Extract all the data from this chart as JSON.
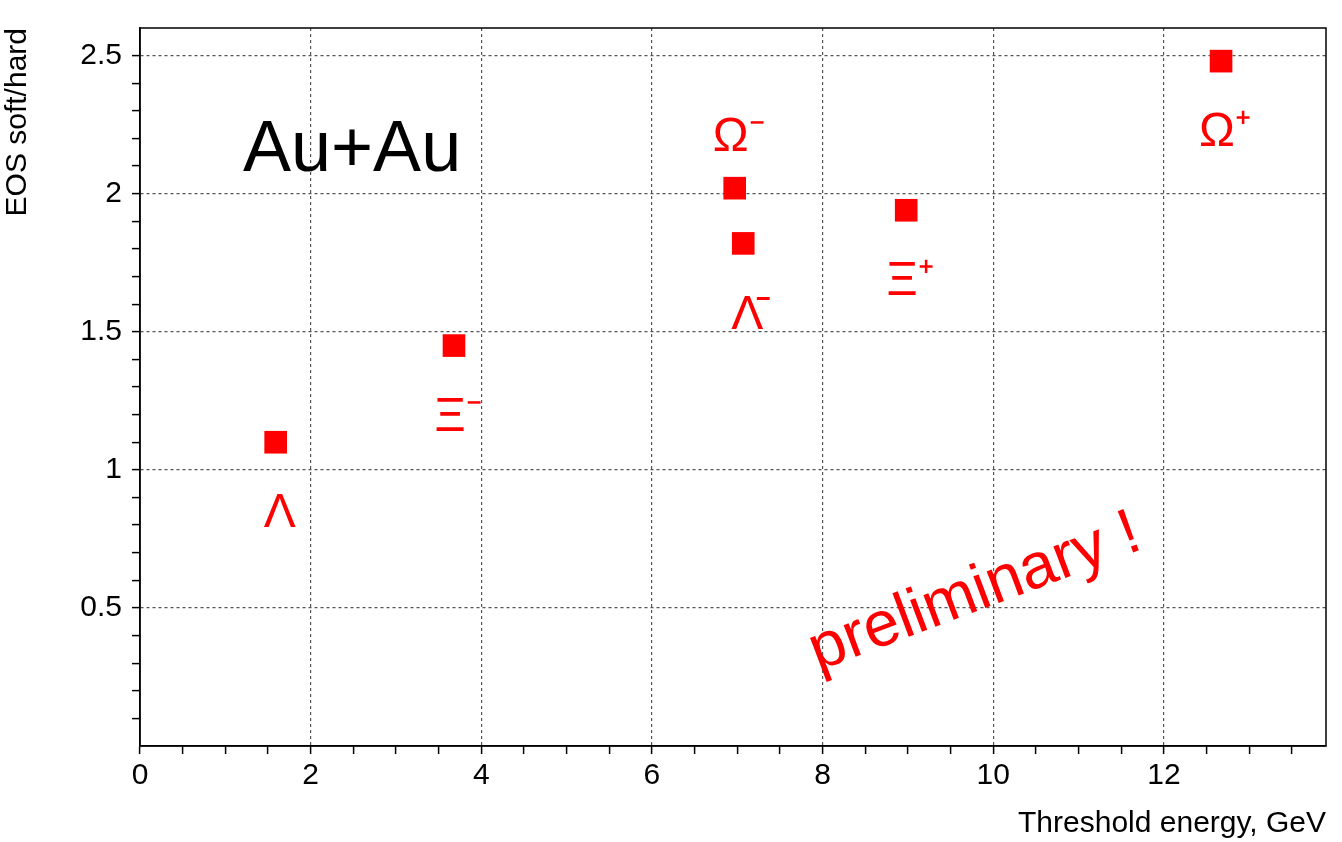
{
  "chart_data": {
    "type": "scatter",
    "xlabel": "Threshold energy, GeV",
    "ylabel": "EOS soft/hard",
    "x": [
      1.59,
      3.68,
      6.97,
      7.07,
      8.98,
      12.67
    ],
    "values": [
      1.1,
      1.45,
      2.02,
      1.82,
      1.94,
      2.48
    ],
    "color": "#ff0000",
    "marker": "square",
    "grid": true,
    "legend": false,
    "xlim": [
      0,
      13.9
    ],
    "ylim": [
      0,
      2.6
    ],
    "xticks": [
      0,
      {
        "value": 0.5,
        "label": null
      },
      {
        "value": 1,
        "label": null
      },
      {
        "value": 1.5,
        "label": null
      },
      2,
      {
        "value": 2.5,
        "label": null
      },
      {
        "value": 3,
        "label": null
      },
      {
        "value": 3.5,
        "label": null
      },
      4,
      {
        "value": 4.5,
        "label": null
      },
      {
        "value": 5,
        "label": null
      },
      {
        "value": 5.5,
        "label": null
      },
      6,
      {
        "value": 6.5,
        "label": null
      },
      {
        "value": 7,
        "label": null
      },
      {
        "value": 7.5,
        "label": null
      },
      8,
      {
        "value": 8.5,
        "label": null
      },
      {
        "value": 9,
        "label": null
      },
      {
        "value": 9.5,
        "label": null
      },
      10,
      {
        "value": 10.5,
        "label": null
      },
      {
        "value": 11,
        "label": null
      },
      {
        "value": 11.5,
        "label": null
      },
      12,
      {
        "value": 12.5,
        "label": null
      },
      {
        "value": 13,
        "label": null
      },
      {
        "value": 13.5,
        "label": null
      }
    ],
    "yticks": [
      {
        "value": 0.1,
        "label": null
      },
      {
        "value": 0.2,
        "label": null
      },
      {
        "value": 0.3,
        "label": null
      },
      {
        "value": 0.4,
        "label": null
      },
      0.5,
      {
        "value": 0.6,
        "label": null
      },
      {
        "value": 0.7,
        "label": null
      },
      {
        "value": 0.8,
        "label": null
      },
      {
        "value": 0.9,
        "label": null
      },
      1,
      {
        "value": 1.1,
        "label": null
      },
      {
        "value": 1.2,
        "label": null
      },
      {
        "value": 1.3,
        "label": null
      },
      {
        "value": 1.4,
        "label": null
      },
      1.5,
      {
        "value": 1.6,
        "label": null
      },
      {
        "value": 1.7,
        "label": null
      },
      {
        "value": 1.8,
        "label": null
      },
      {
        "value": 1.9,
        "label": null
      },
      2,
      {
        "value": 2.1,
        "label": null
      },
      {
        "value": 2.2,
        "label": null
      },
      {
        "value": 2.3,
        "label": null
      },
      {
        "value": 2.4,
        "label": null
      },
      2.5
    ],
    "annotations": [
      "Au+Au",
      "preliminary !",
      {
        "text": "Λ",
        "x": 1.59,
        "y": 1.1
      },
      {
        "text": "Ξ⁻",
        "x": 3.68,
        "y": 1.45
      },
      {
        "text": "Ω⁻",
        "x": 6.97,
        "y": 2.02
      },
      {
        "text": "Λ̄",
        "x": 7.07,
        "y": 1.82
      },
      {
        "text": "Ξ⁺",
        "x": 8.98,
        "y": 1.94
      },
      {
        "text": "Ω⁺",
        "x": 12.67,
        "y": 2.48
      }
    ]
  }
}
